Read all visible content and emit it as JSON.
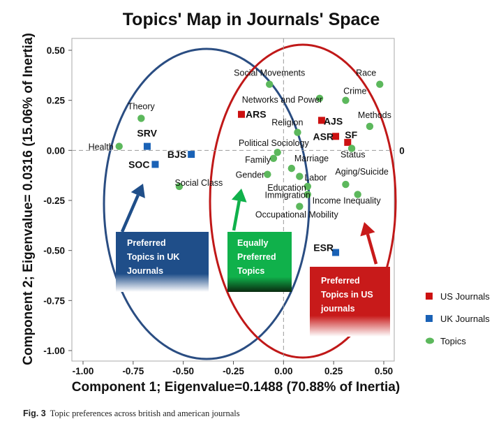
{
  "chart_data": {
    "type": "scatter",
    "title": "Topics' Map in Journals' Space",
    "xlabel": "Component 1; Eigenvalue=0.1488 (70.88% of Inertia)",
    "ylabel": "Component 2; Eigenvalue= 0.0316 (15.06% of Inertia)",
    "xlim": [
      -1.05,
      0.55
    ],
    "ylim": [
      -1.05,
      0.55
    ],
    "x_ticks": [
      "-1.00",
      "-0.75",
      "-0.50",
      "-0.25",
      "0.00",
      "0.25",
      "0.50"
    ],
    "y_ticks": [
      "0.50",
      "0.25",
      "0.00",
      "-0.25",
      "-0.50",
      "-0.75",
      "-1.00"
    ],
    "zero_label": "0",
    "grid": false,
    "legend_position": "right",
    "series": [
      {
        "name": "US Journals",
        "color": "#cc1111",
        "marker": "square",
        "points": [
          {
            "label": "ARS",
            "x": -0.21,
            "y": 0.18
          },
          {
            "label": "AJS",
            "x": 0.19,
            "y": 0.15
          },
          {
            "label": "ASR",
            "x": 0.26,
            "y": 0.07
          },
          {
            "label": "SF",
            "x": 0.32,
            "y": 0.04
          }
        ]
      },
      {
        "name": "UK Journals",
        "color": "#1a62b6",
        "marker": "square",
        "points": [
          {
            "label": "SRV",
            "x": -0.68,
            "y": 0.02
          },
          {
            "label": "BJS",
            "x": -0.46,
            "y": -0.02
          },
          {
            "label": "SOC",
            "x": -0.64,
            "y": -0.07
          },
          {
            "label": "ESR",
            "x": 0.26,
            "y": -0.51
          }
        ]
      },
      {
        "name": "Topics",
        "color": "#5cb85c",
        "marker": "circle",
        "points": [
          {
            "label": "Social Movements",
            "x": -0.07,
            "y": 0.33
          },
          {
            "label": "Race",
            "x": 0.48,
            "y": 0.33
          },
          {
            "label": "Networks and Power",
            "x": 0.18,
            "y": 0.26
          },
          {
            "label": "Crime",
            "x": 0.31,
            "y": 0.25
          },
          {
            "label": "Theory",
            "x": -0.71,
            "y": 0.16
          },
          {
            "label": "Methods",
            "x": 0.43,
            "y": 0.12
          },
          {
            "label": "Religion",
            "x": 0.07,
            "y": 0.09
          },
          {
            "label": "Health",
            "x": -0.82,
            "y": 0.02
          },
          {
            "label": "Status",
            "x": 0.34,
            "y": 0.01
          },
          {
            "label": "Political Sociology",
            "x": -0.03,
            "y": -0.01
          },
          {
            "label": "Family",
            "x": -0.05,
            "y": -0.04
          },
          {
            "label": "Marriage",
            "x": 0.04,
            "y": -0.09
          },
          {
            "label": "Gender",
            "x": -0.08,
            "y": -0.12
          },
          {
            "label": "Labor",
            "x": 0.08,
            "y": -0.13
          },
          {
            "label": "Social Class",
            "x": -0.52,
            "y": -0.18
          },
          {
            "label": "Aging/Suicide",
            "x": 0.31,
            "y": -0.17
          },
          {
            "label": "Education",
            "x": 0.12,
            "y": -0.18
          },
          {
            "label": "Immigration",
            "x": 0.12,
            "y": -0.22
          },
          {
            "label": "Income Inequality",
            "x": 0.37,
            "y": -0.22
          },
          {
            "label": "Occupational Mobility",
            "x": 0.08,
            "y": -0.28
          }
        ]
      }
    ],
    "annotations": [
      {
        "text": [
          "Preferred",
          "Topics in UK",
          "Journals"
        ],
        "color": "#1f4e89"
      },
      {
        "text": [
          "Equally",
          "Preferred",
          "Topics"
        ],
        "color": "#10b14b"
      },
      {
        "text": [
          "Preferred",
          "Topics in US",
          "journals"
        ],
        "color": "#c81a1a"
      }
    ],
    "ellipses": [
      {
        "group": "UK",
        "color": "#2a4d82"
      },
      {
        "group": "US",
        "color": "#c01818"
      }
    ]
  },
  "legend": {
    "items": [
      {
        "label": "US Journals",
        "color": "#cc1111"
      },
      {
        "label": "UK Journals",
        "color": "#1a62b6"
      },
      {
        "label": "Topics",
        "color": "#5cb85c"
      }
    ]
  },
  "caption": {
    "prefix": "Fig. 3",
    "text": "Topic preferences across british and american journals"
  }
}
